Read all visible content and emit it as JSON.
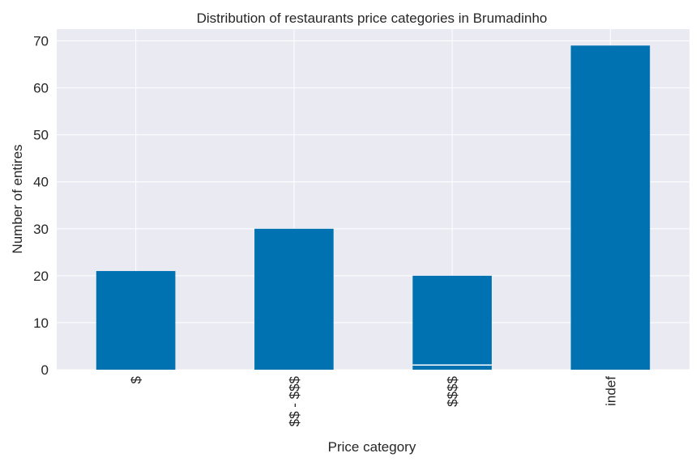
{
  "chart_data": {
    "type": "bar",
    "title": "Distribution of restaurants price categories in Brumadinho",
    "xlabel": "Price category",
    "ylabel": "Number of entires",
    "categories": [
      "$",
      "$$ - $$$",
      "$$$$",
      "indef"
    ],
    "values": [
      21,
      30,
      20,
      69
    ],
    "stacked_segments": [
      {
        "category": "$$$$",
        "value": 1
      }
    ],
    "ylim": [
      0,
      72.5
    ],
    "yticks": [
      0,
      10,
      20,
      30,
      40,
      50,
      60,
      70
    ],
    "grid": true,
    "legend": "none",
    "bar_color": "#0072b2",
    "plot_background": "#eaeaf2",
    "grid_color": "#ffffff"
  }
}
